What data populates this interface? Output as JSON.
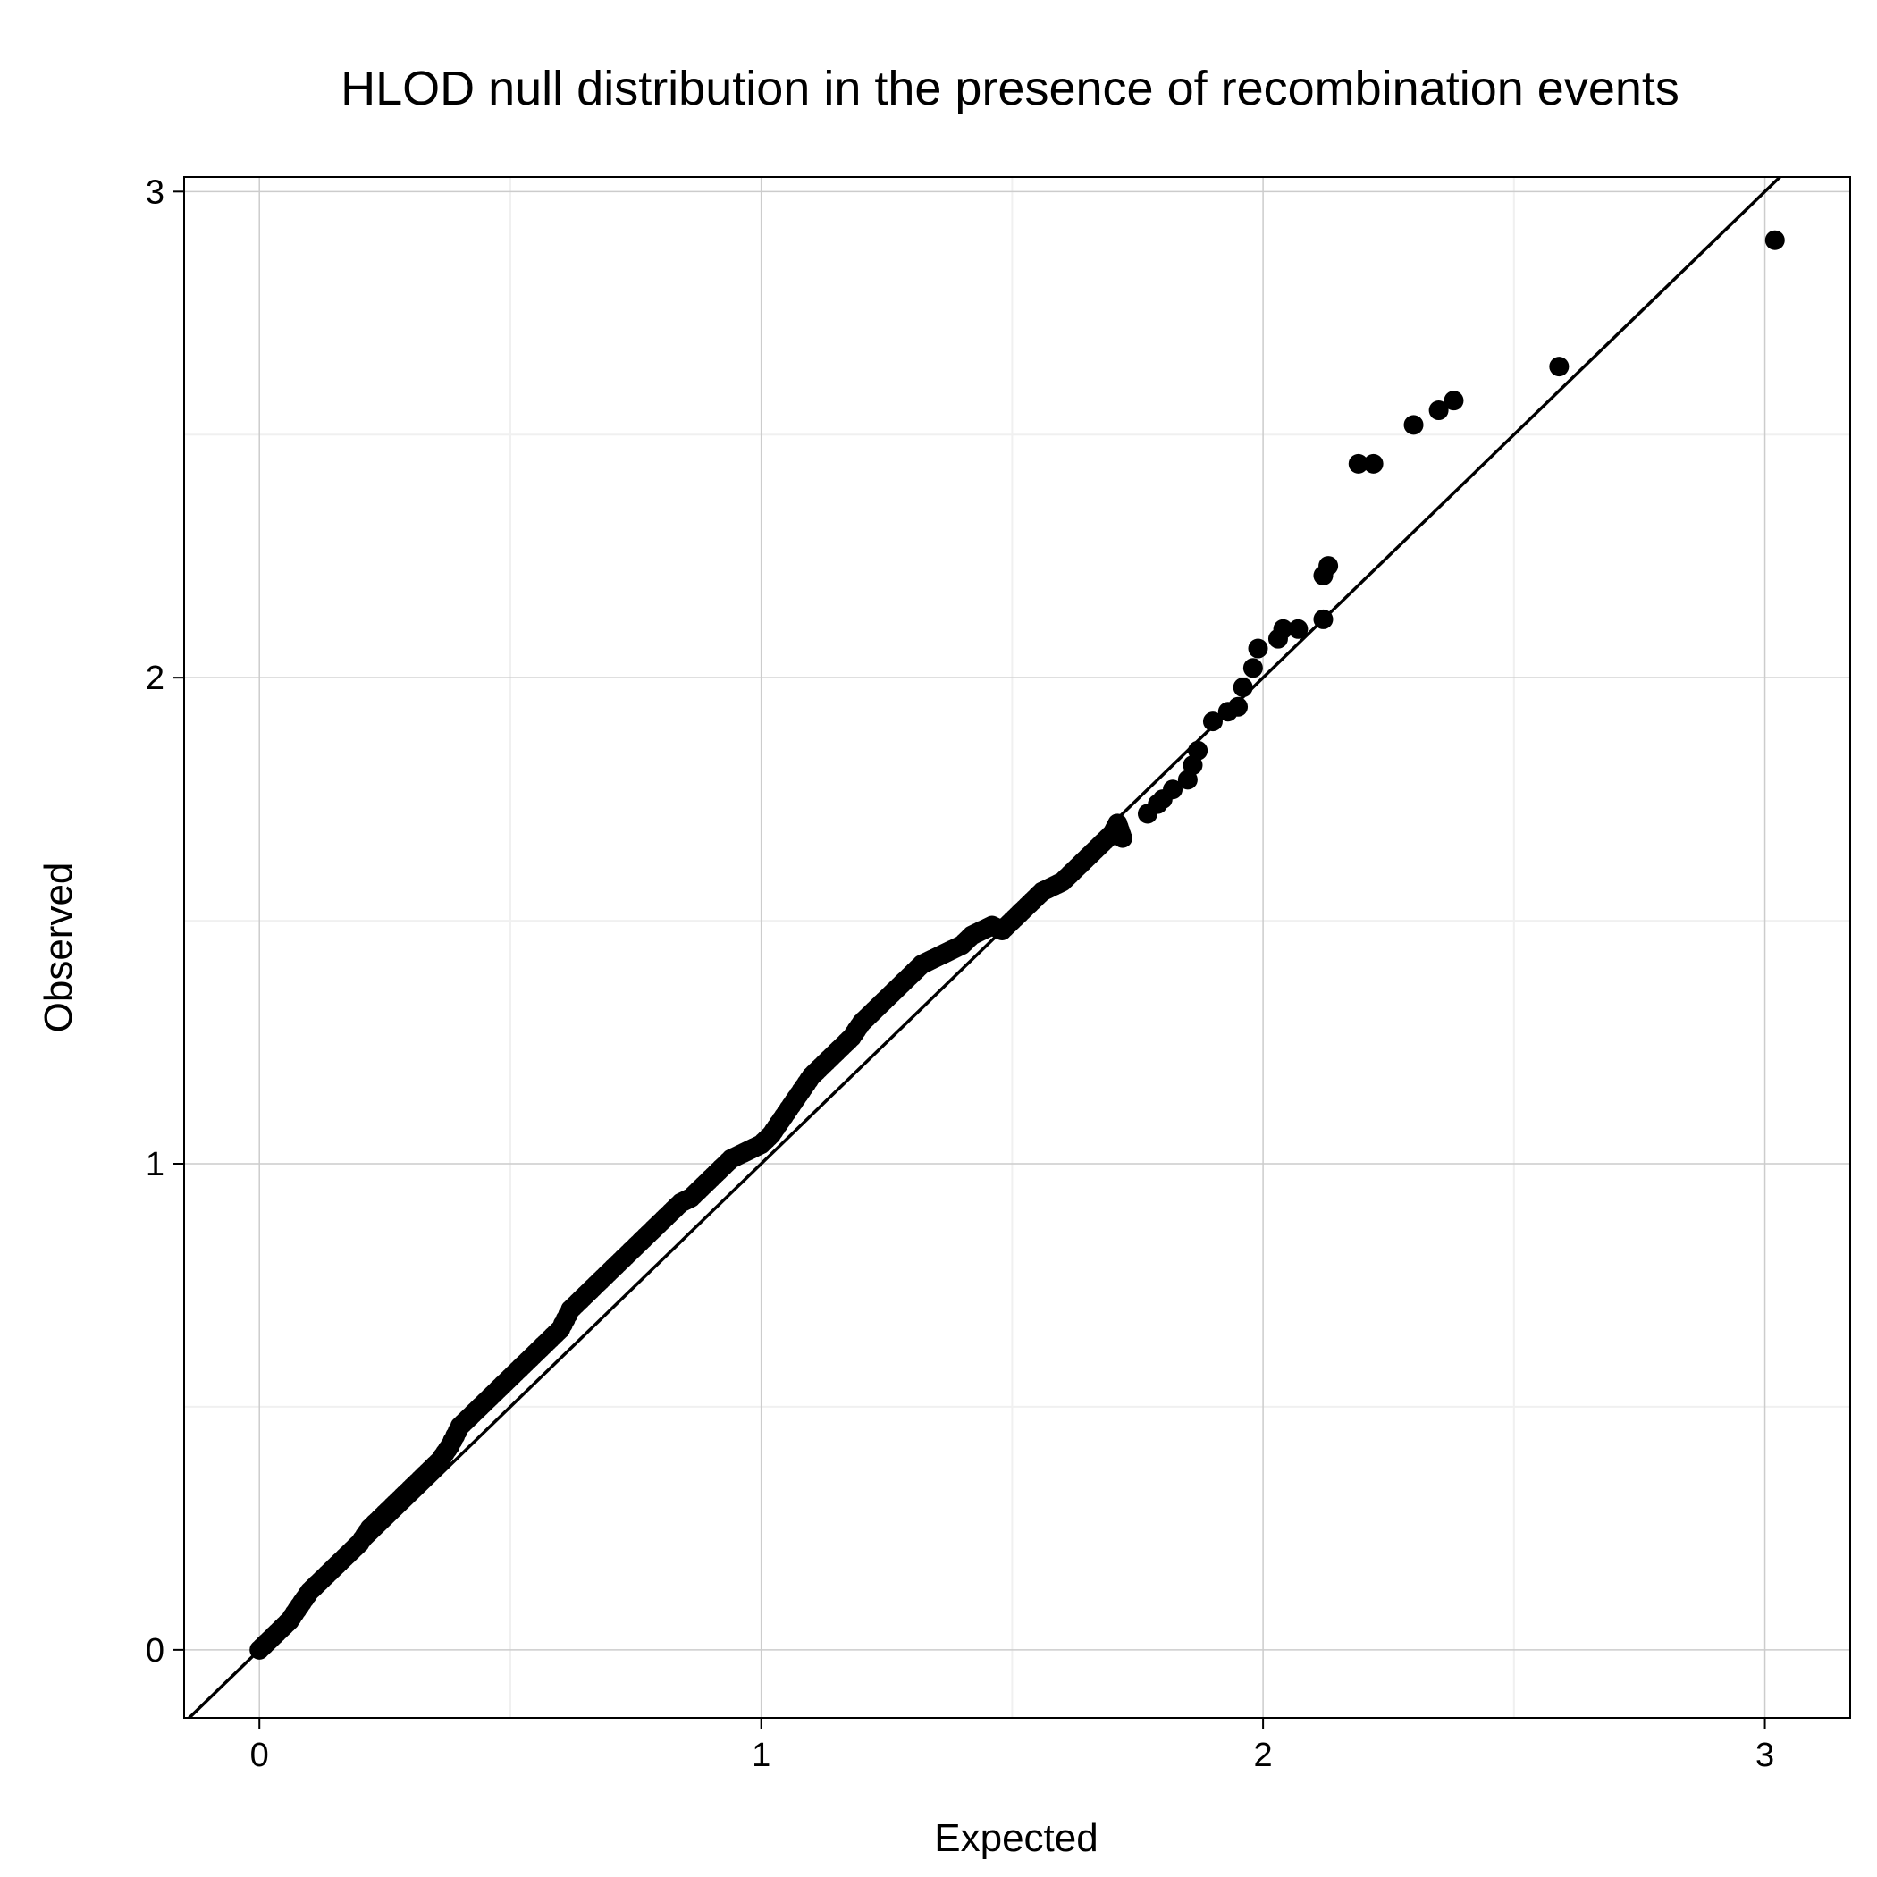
{
  "chart_data": {
    "type": "scatter",
    "title": "HLOD null distribution in the presence of recombination events",
    "xlabel": "Expected",
    "ylabel": "Observed",
    "xlim": [
      -0.15,
      3.17
    ],
    "ylim": [
      -0.14,
      3.03
    ],
    "x_ticks": [
      "0",
      "1",
      "2",
      "3"
    ],
    "y_ticks": [
      "0",
      "1",
      "2",
      "3"
    ],
    "grid": true,
    "reference_line": {
      "slope": 1,
      "intercept": 0
    },
    "point_color": "#000000",
    "line_color": "#000000",
    "series": [
      {
        "values_note_free": true,
        "x": [
          0.0,
          0.02,
          0.04,
          0.06,
          0.08,
          0.1,
          0.12,
          0.14,
          0.16,
          0.18,
          0.2,
          0.22,
          0.24,
          0.26,
          0.28,
          0.3,
          0.32,
          0.34,
          0.36,
          0.38,
          0.4,
          0.42,
          0.44,
          0.46,
          0.48,
          0.5,
          0.52,
          0.54,
          0.56,
          0.58,
          0.6,
          0.62,
          0.64,
          0.66,
          0.68,
          0.7,
          0.72,
          0.74,
          0.76,
          0.78,
          0.8,
          0.82,
          0.84,
          0.86,
          0.88,
          0.9,
          0.92,
          0.94,
          0.96,
          0.98,
          1.0,
          1.02,
          1.04,
          1.06,
          1.08,
          1.1,
          1.12,
          1.14,
          1.16,
          1.18,
          1.2,
          1.22,
          1.24,
          1.26,
          1.28,
          1.3,
          1.32,
          1.34,
          1.36,
          1.38,
          1.4,
          1.42,
          1.44,
          1.46,
          1.48,
          1.5,
          1.52,
          1.54,
          1.56,
          1.58,
          1.6,
          1.62,
          1.64,
          1.66,
          1.68,
          1.7,
          1.71,
          1.72,
          1.77,
          1.79,
          1.8,
          1.82,
          1.85,
          1.86,
          1.87,
          1.9,
          1.93,
          1.95,
          1.96,
          1.98,
          1.99,
          2.03,
          2.04,
          2.07,
          2.12,
          2.12,
          2.13,
          2.19,
          2.22,
          2.3,
          2.35,
          2.38,
          2.59,
          3.02
        ],
        "y": [
          0.0,
          0.02,
          0.04,
          0.06,
          0.09,
          0.12,
          0.14,
          0.16,
          0.18,
          0.2,
          0.22,
          0.25,
          0.27,
          0.29,
          0.31,
          0.33,
          0.35,
          0.37,
          0.39,
          0.42,
          0.46,
          0.48,
          0.5,
          0.52,
          0.54,
          0.56,
          0.58,
          0.6,
          0.62,
          0.64,
          0.66,
          0.7,
          0.72,
          0.74,
          0.76,
          0.78,
          0.8,
          0.82,
          0.84,
          0.86,
          0.88,
          0.9,
          0.92,
          0.93,
          0.95,
          0.97,
          0.99,
          1.01,
          1.02,
          1.03,
          1.04,
          1.06,
          1.09,
          1.12,
          1.15,
          1.18,
          1.2,
          1.22,
          1.24,
          1.26,
          1.29,
          1.31,
          1.33,
          1.35,
          1.37,
          1.39,
          1.41,
          1.42,
          1.43,
          1.44,
          1.45,
          1.47,
          1.48,
          1.49,
          1.48,
          1.5,
          1.52,
          1.54,
          1.56,
          1.57,
          1.58,
          1.6,
          1.62,
          1.64,
          1.66,
          1.68,
          1.7,
          1.67,
          1.72,
          1.74,
          1.75,
          1.77,
          1.79,
          1.82,
          1.85,
          1.91,
          1.93,
          1.94,
          1.98,
          2.02,
          2.06,
          2.08,
          2.1,
          2.1,
          2.21,
          2.12,
          2.23,
          2.44,
          2.44,
          2.52,
          2.55,
          2.57,
          2.64,
          2.9
        ]
      }
    ]
  }
}
